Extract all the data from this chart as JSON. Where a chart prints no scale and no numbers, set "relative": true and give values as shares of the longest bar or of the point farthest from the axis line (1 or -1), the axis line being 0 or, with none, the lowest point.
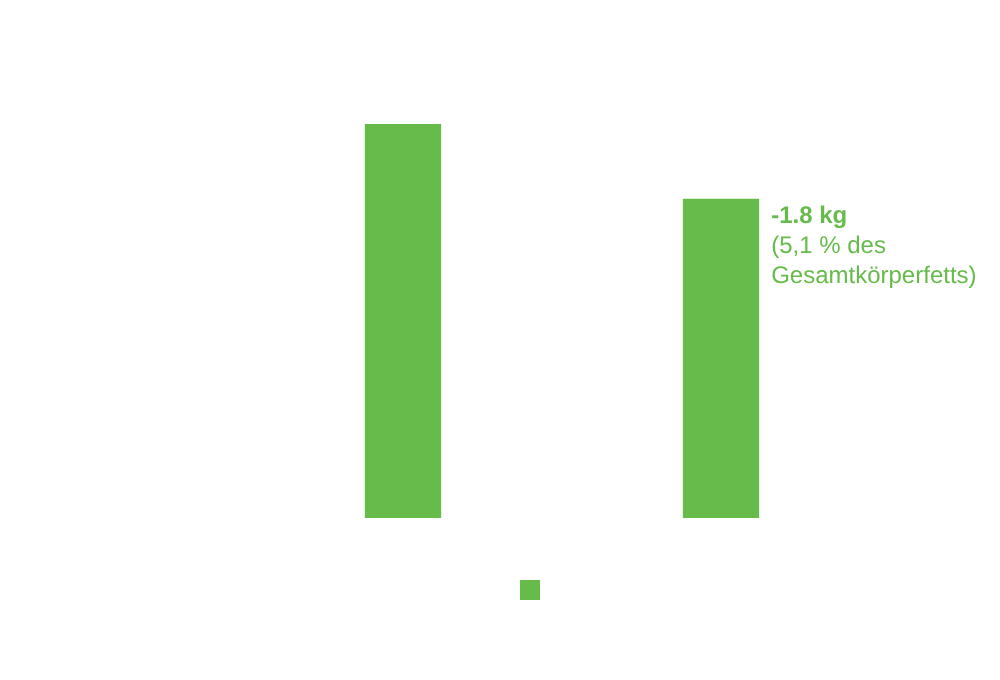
{
  "chart_data": {
    "type": "bar",
    "relative": true,
    "categories": [
      null,
      null
    ],
    "series": [
      {
        "color": "#66bb4a",
        "values": [
          1,
          0.81
        ]
      }
    ],
    "annotations": [
      "-1.8 kg",
      "(5,1 % des Gesamtkörperfetts)"
    ]
  }
}
